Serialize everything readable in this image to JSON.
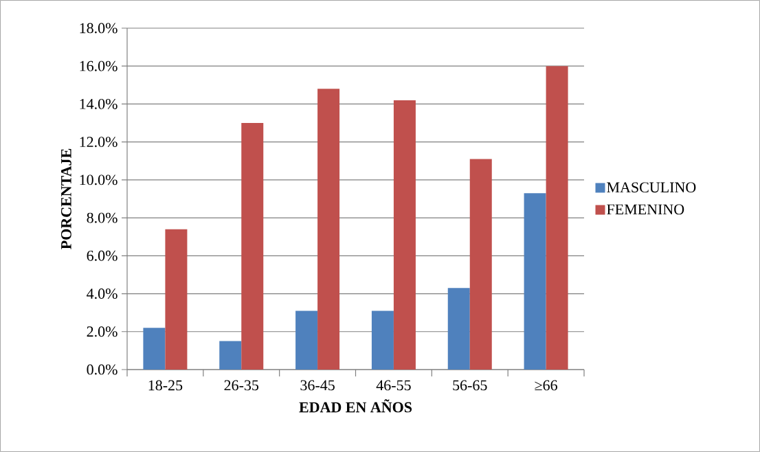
{
  "chart_data": {
    "type": "bar",
    "xlabel": "EDAD EN AÑOS",
    "ylabel": "PORCENTAJE",
    "categories": [
      "18-25",
      "26-35",
      "36-45",
      "46-55",
      "56-65",
      "≥66"
    ],
    "series": [
      {
        "name": "MASCULINO",
        "color": "#4f81bd",
        "values": [
          2.2,
          1.5,
          3.1,
          3.1,
          4.3,
          9.3
        ]
      },
      {
        "name": "FEMENINO",
        "color": "#c0504d",
        "values": [
          7.4,
          13.0,
          14.8,
          14.2,
          11.1,
          16.0
        ]
      }
    ],
    "ylim": [
      0,
      18
    ],
    "yticks": [
      {
        "value": 0,
        "label": "0.0%"
      },
      {
        "value": 2,
        "label": "2.0%"
      },
      {
        "value": 4,
        "label": "4.0%"
      },
      {
        "value": 6,
        "label": "6.0%"
      },
      {
        "value": 8,
        "label": "8.0%"
      },
      {
        "value": 10,
        "label": "10.0%"
      },
      {
        "value": 12,
        "label": "12.0%"
      },
      {
        "value": 14,
        "label": "14.0%"
      },
      {
        "value": 16,
        "label": "16.0%"
      },
      {
        "value": 18,
        "label": "18.0%"
      }
    ],
    "grid": "y",
    "legend": "right"
  }
}
